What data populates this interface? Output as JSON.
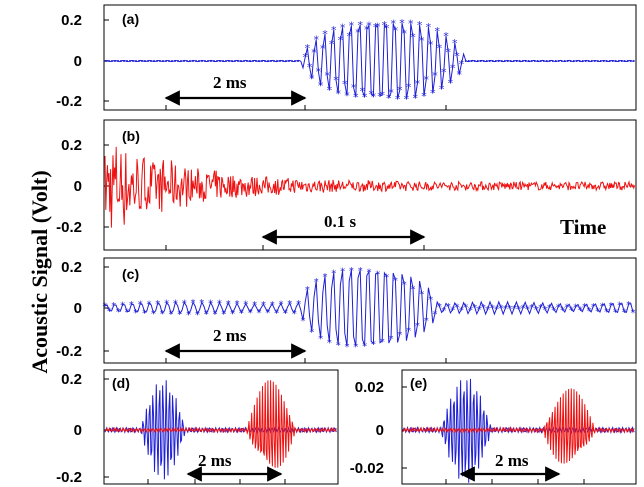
{
  "y_axis_label": "Acoustic Signal (Volt)",
  "time_label": "Time",
  "colors": {
    "blue": "#1f1fd6",
    "red": "#ee1111"
  },
  "chart_data": [
    {
      "type": "line",
      "panel": "(a)",
      "ylim": [
        -0.25,
        0.25
      ],
      "yticks": [
        "0.2",
        "0",
        "-0.2"
      ],
      "ytick_values": [
        0.2,
        0,
        -0.2
      ],
      "annotation": "2 ms",
      "series": [
        {
          "color": "blue",
          "markers": "asterisk",
          "description_values": {
            "baseline_amplitude": 0.003,
            "burst_peak_amplitude": 0.24,
            "burst_start_fraction": 0.37,
            "burst_end_fraction": 0.68
          }
        }
      ]
    },
    {
      "type": "line",
      "panel": "(b)",
      "ylim": [
        -0.28,
        0.28
      ],
      "yticks": [
        "0.2",
        "0",
        "-0.2"
      ],
      "ytick_values": [
        0.2,
        0,
        -0.2
      ],
      "annotation": "0.1 s",
      "series": [
        {
          "color": "red",
          "description_values": {
            "initial_peak_amplitude": 0.28,
            "tail_amplitude": 0.02
          }
        }
      ]
    },
    {
      "type": "line",
      "panel": "(c)",
      "ylim": [
        -0.25,
        0.25
      ],
      "yticks": [
        "0.2",
        "0",
        "-0.2"
      ],
      "ytick_values": [
        0.2,
        0,
        -0.2
      ],
      "annotation": "2 ms",
      "series": [
        {
          "color": "blue",
          "markers": "asterisk",
          "description_values": {
            "side_amplitude": 0.03,
            "burst_peak_amplitude": 0.24
          }
        }
      ]
    },
    {
      "type": "line",
      "panel": "(d)",
      "ylim": [
        -0.22,
        0.22
      ],
      "yticks": [
        "0.2",
        "0",
        "-0.2"
      ],
      "ytick_values": [
        0.2,
        0,
        -0.2
      ],
      "annotation": "2 ms",
      "series": [
        {
          "color": "blue",
          "description_values": {
            "burst_peak_amplitude": 0.2
          }
        },
        {
          "color": "red",
          "description_values": {
            "burst_peak_amplitude": 0.2
          }
        }
      ]
    },
    {
      "type": "line",
      "panel": "(e)",
      "ylim": [
        -0.028,
        0.028
      ],
      "yticks": [
        "0.02",
        "0",
        "-0.02"
      ],
      "ytick_values": [
        0.02,
        0,
        -0.02
      ],
      "annotation": "2 ms",
      "series": [
        {
          "color": "blue",
          "description_values": {
            "burst_peak_amplitude": 0.025
          }
        },
        {
          "color": "red",
          "description_values": {
            "burst_peak_amplitude": 0.02
          }
        }
      ]
    }
  ]
}
